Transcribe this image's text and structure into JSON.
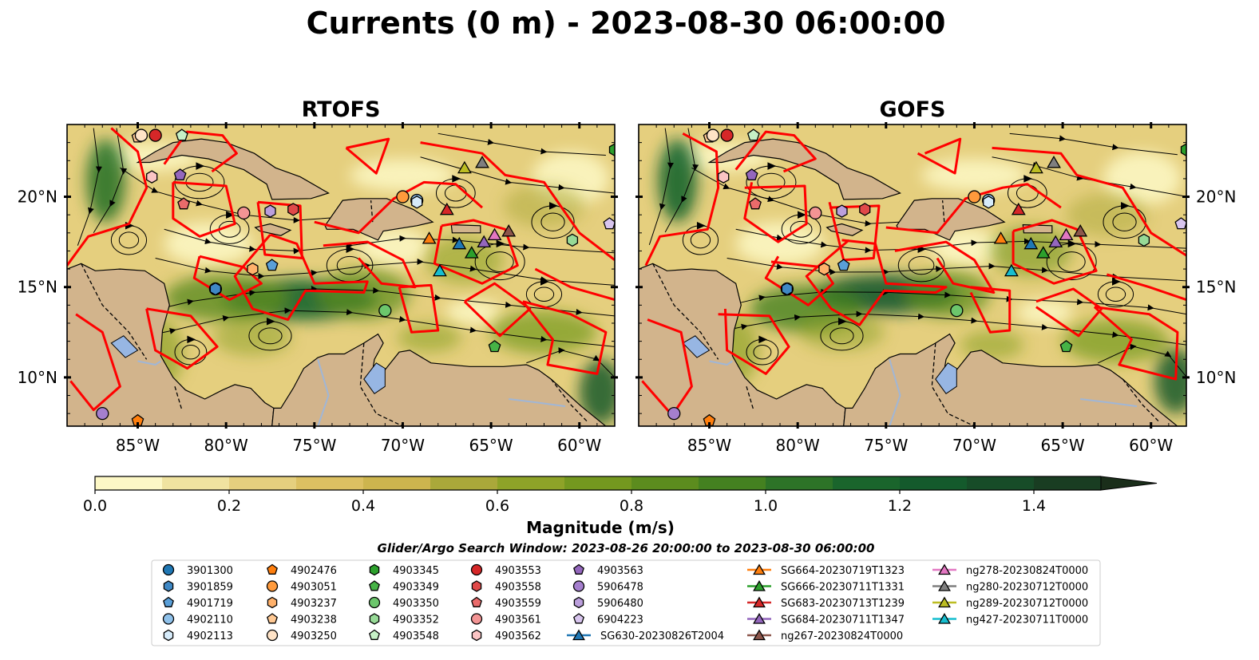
{
  "figure": {
    "title": "Currents (0 m) - 2023-08-30 06:00:00"
  },
  "panels": [
    {
      "id": "rtofs",
      "title": "RTOFS"
    },
    {
      "id": "gofs",
      "title": "GOFS"
    }
  ],
  "map_extent": {
    "lon_min": -89,
    "lon_max": -58,
    "lat_min": 7.3,
    "lat_max": 24
  },
  "axes": {
    "lon_ticks": [
      {
        "value": -85,
        "label": "85°W"
      },
      {
        "value": -80,
        "label": "80°W"
      },
      {
        "value": -75,
        "label": "75°W"
      },
      {
        "value": -70,
        "label": "70°W"
      },
      {
        "value": -65,
        "label": "65°W"
      },
      {
        "value": -60,
        "label": "60°W"
      }
    ],
    "lat_ticks": [
      {
        "value": 10,
        "label": "10°N"
      },
      {
        "value": 15,
        "label": "15°N"
      },
      {
        "value": 20,
        "label": "20°N"
      }
    ]
  },
  "colorbar": {
    "label": "Magnitude (m/s)",
    "min": 0.0,
    "max": 1.5,
    "extend": "max",
    "ticks": [
      {
        "value": 0.0,
        "label": "0.0"
      },
      {
        "value": 0.2,
        "label": "0.2"
      },
      {
        "value": 0.4,
        "label": "0.4"
      },
      {
        "value": 0.6,
        "label": "0.6"
      },
      {
        "value": 0.8,
        "label": "0.8"
      },
      {
        "value": 1.0,
        "label": "1.0"
      },
      {
        "value": 1.2,
        "label": "1.2"
      },
      {
        "value": 1.4,
        "label": "1.4"
      }
    ],
    "colors": [
      "#fdf8c6",
      "#f0e3a0",
      "#e5cf7e",
      "#dcc062",
      "#cdb54e",
      "#aaa83a",
      "#8ea328",
      "#74981f",
      "#5c8c1e",
      "#448120",
      "#2d7327",
      "#1a652c",
      "#145a2c",
      "#174c28",
      "#193d22",
      "#1a2e1a"
    ]
  },
  "search_window": "Glider/Argo Search Window: 2023-08-26 20:00:00 to 2023-08-30 06:00:00",
  "colors": {
    "land": "#d2b48c",
    "lake": "#97b6e3",
    "track": "#ff0000",
    "streamline": "#000000"
  },
  "legend": {
    "columns": [
      [
        {
          "label": "3901300",
          "marker": "circle",
          "color": "#1f77b4"
        },
        {
          "label": "3901859",
          "marker": "hexagon",
          "color": "#3f88c5"
        },
        {
          "label": "4901719",
          "marker": "pentagon",
          "color": "#5a9fd8"
        },
        {
          "label": "4902110",
          "marker": "circle",
          "color": "#8fc1ea"
        },
        {
          "label": "4902113",
          "marker": "hexagon",
          "color": "#d6ebfa"
        }
      ],
      [
        {
          "label": "4902476",
          "marker": "pentagon",
          "color": "#ff7f0e"
        },
        {
          "label": "4903051",
          "marker": "circle",
          "color": "#ff9a3c"
        },
        {
          "label": "4903237",
          "marker": "hexagon",
          "color": "#ffb16b"
        },
        {
          "label": "4903238",
          "marker": "pentagon",
          "color": "#ffc994"
        },
        {
          "label": "4903250",
          "marker": "circle",
          "color": "#ffe3c7"
        }
      ],
      [
        {
          "label": "4903345",
          "marker": "hexagon",
          "color": "#2ca02c"
        },
        {
          "label": "4903349",
          "marker": "pentagon",
          "color": "#46b346"
        },
        {
          "label": "4903350",
          "marker": "circle",
          "color": "#6cc66c"
        },
        {
          "label": "4903352",
          "marker": "hexagon",
          "color": "#97da97"
        },
        {
          "label": "4903548",
          "marker": "pentagon",
          "color": "#c6f0c6"
        }
      ],
      [
        {
          "label": "4903553",
          "marker": "circle",
          "color": "#d62728"
        },
        {
          "label": "4903558",
          "marker": "hexagon",
          "color": "#e04949"
        },
        {
          "label": "4903559",
          "marker": "pentagon",
          "color": "#ea6b6b"
        },
        {
          "label": "4903561",
          "marker": "circle",
          "color": "#f39494"
        },
        {
          "label": "4903562",
          "marker": "hexagon",
          "color": "#fbc4c4"
        }
      ],
      [
        {
          "label": "4903563",
          "marker": "pentagon",
          "color": "#9467bd"
        },
        {
          "label": "5906478",
          "marker": "circle",
          "color": "#a57fce"
        },
        {
          "label": "5906480",
          "marker": "hexagon",
          "color": "#bb9fdc"
        },
        {
          "label": "6904223",
          "marker": "pentagon",
          "color": "#d8c5ee"
        },
        {
          "label": "SG630-20230826T2004",
          "marker": "triangle",
          "color": "#1f77b4",
          "line": true
        }
      ],
      [
        {
          "label": "SG664-20230719T1323",
          "marker": "triangle",
          "color": "#ff7f0e",
          "line": true
        },
        {
          "label": "SG666-20230711T1331",
          "marker": "triangle",
          "color": "#2ca02c",
          "line": true
        },
        {
          "label": "SG683-20230713T1239",
          "marker": "triangle",
          "color": "#d62728",
          "line": true
        },
        {
          "label": "SG684-20230711T1347",
          "marker": "triangle",
          "color": "#9467bd",
          "line": true
        },
        {
          "label": "ng267-20230824T0000",
          "marker": "triangle",
          "color": "#8c564b",
          "line": true
        }
      ],
      [
        {
          "label": "ng278-20230824T0000",
          "marker": "triangle",
          "color": "#e377c2",
          "line": true
        },
        {
          "label": "ng280-20230712T0000",
          "marker": "triangle",
          "color": "#7f7f7f",
          "line": true
        },
        {
          "label": "ng289-20230712T0000",
          "marker": "triangle",
          "color": "#bcbd22",
          "line": true
        },
        {
          "label": "ng427-20230711T0000",
          "marker": "triangle",
          "color": "#17becf",
          "line": true
        }
      ]
    ]
  },
  "floats": [
    {
      "id": "3901300",
      "lon": -80.6,
      "lat": 14.9
    },
    {
      "id": "3901859",
      "lon": -80.6,
      "lat": 14.9
    },
    {
      "id": "4901719",
      "lon": -77.4,
      "lat": 16.2
    },
    {
      "id": "4902110",
      "lon": -69.2,
      "lat": 19.8
    },
    {
      "id": "4902113",
      "lon": -69.2,
      "lat": 19.7
    },
    {
      "id": "4902476",
      "lon": -85.0,
      "lat": 7.6
    },
    {
      "id": "4903051",
      "lon": -70.0,
      "lat": 20.0
    },
    {
      "id": "4903237",
      "lon": -78.5,
      "lat": 16.0
    },
    {
      "id": "4903238",
      "lon": -85.0,
      "lat": 23.3
    },
    {
      "id": "4903250",
      "lon": -84.8,
      "lat": 23.4
    },
    {
      "id": "4903345",
      "lon": -58.0,
      "lat": 22.6
    },
    {
      "id": "4903349",
      "lon": -64.8,
      "lat": 11.7
    },
    {
      "id": "4903350",
      "lon": -71.0,
      "lat": 13.7
    },
    {
      "id": "4903352",
      "lon": -60.4,
      "lat": 17.6
    },
    {
      "id": "4903548",
      "lon": -82.5,
      "lat": 23.4
    },
    {
      "id": "4903553",
      "lon": -84.0,
      "lat": 23.4
    },
    {
      "id": "4903558",
      "lon": -76.2,
      "lat": 19.3
    },
    {
      "id": "4903559",
      "lon": -82.4,
      "lat": 19.6
    },
    {
      "id": "4903561",
      "lon": -79.0,
      "lat": 19.1
    },
    {
      "id": "4903562",
      "lon": -84.2,
      "lat": 21.1
    },
    {
      "id": "4903563",
      "lon": -82.6,
      "lat": 21.2
    },
    {
      "id": "5906478",
      "lon": -87.0,
      "lat": 8.0
    },
    {
      "id": "5906480",
      "lon": -77.5,
      "lat": 19.2
    },
    {
      "id": "6904223",
      "lon": -58.3,
      "lat": 18.5
    },
    {
      "id": "SG630-20230826T2004",
      "lon": -66.8,
      "lat": 17.4
    },
    {
      "id": "SG664-20230719T1323",
      "lon": -68.5,
      "lat": 17.7
    },
    {
      "id": "SG666-20230711T1331",
      "lon": -66.1,
      "lat": 16.9
    },
    {
      "id": "SG683-20230713T1239",
      "lon": -67.5,
      "lat": 19.3
    },
    {
      "id": "SG684-20230711T1347",
      "lon": -65.4,
      "lat": 17.5
    },
    {
      "id": "ng267-20230824T0000",
      "lon": -64.0,
      "lat": 18.1
    },
    {
      "id": "ng278-20230824T0000",
      "lon": -64.8,
      "lat": 17.9
    },
    {
      "id": "ng280-20230712T0000",
      "lon": -65.5,
      "lat": 21.9
    },
    {
      "id": "ng289-20230712T0000",
      "lon": -66.5,
      "lat": 21.6
    },
    {
      "id": "ng427-20230711T0000",
      "lon": -67.9,
      "lat": 15.9
    }
  ]
}
